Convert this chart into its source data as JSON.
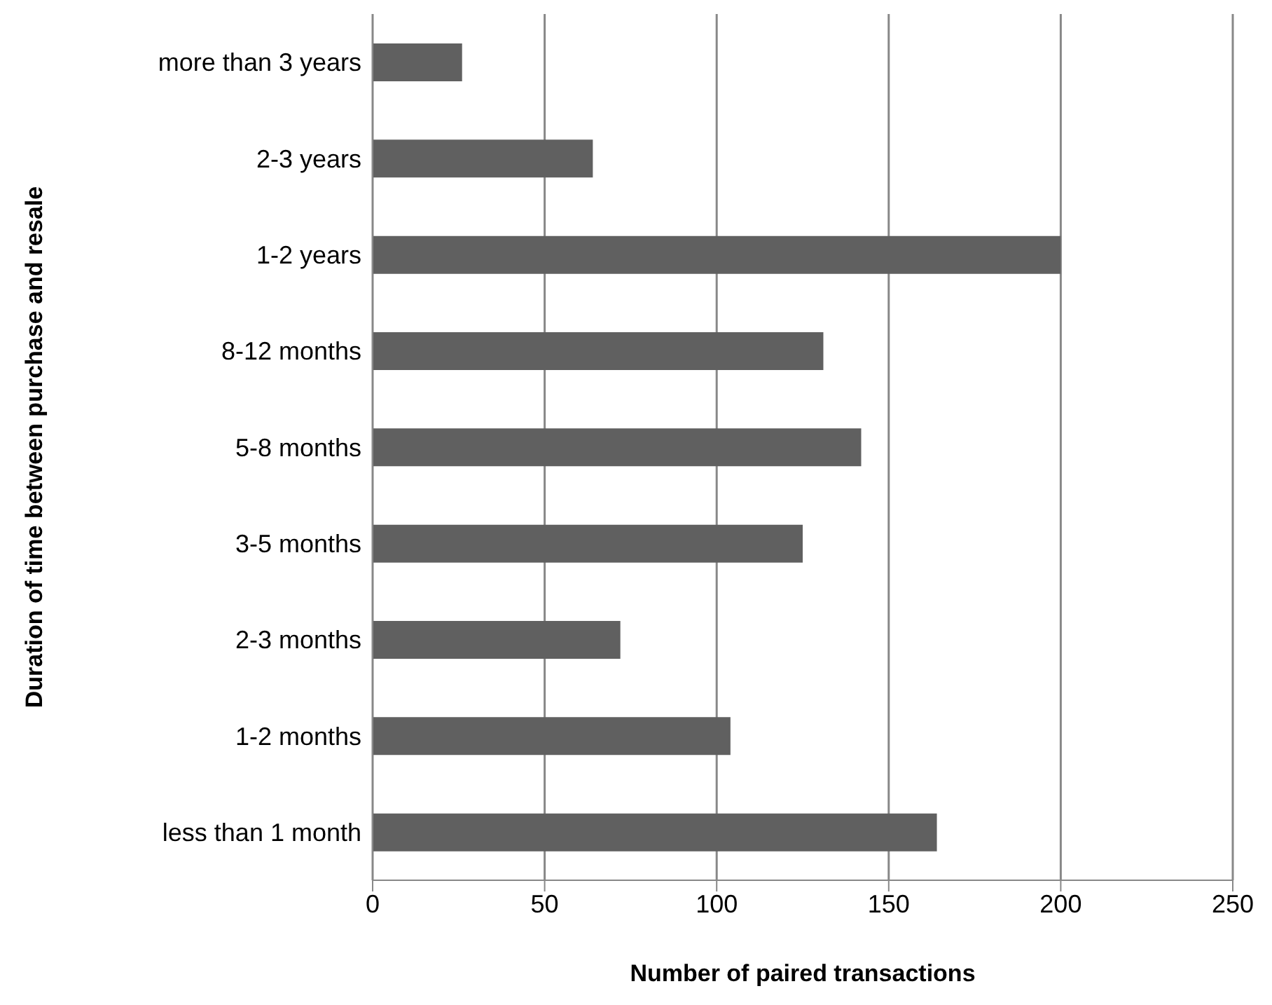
{
  "chart_data": {
    "type": "bar",
    "orientation": "horizontal",
    "xlabel": "Number of paired transactions",
    "ylabel": "Duration of time between purchase and resale",
    "categories": [
      "more than 3 years",
      "2-3 years",
      "1-2 years",
      "8-12 months",
      "5-8 months",
      "3-5 months",
      "2-3 months",
      "1-2 months",
      "less than 1 month"
    ],
    "values": [
      26,
      64,
      200,
      131,
      142,
      125,
      72,
      104,
      164
    ],
    "color": "#606060",
    "xlim": [
      0,
      250
    ],
    "xticks": [
      0,
      50,
      100,
      150,
      200,
      250
    ],
    "grid": "x"
  }
}
